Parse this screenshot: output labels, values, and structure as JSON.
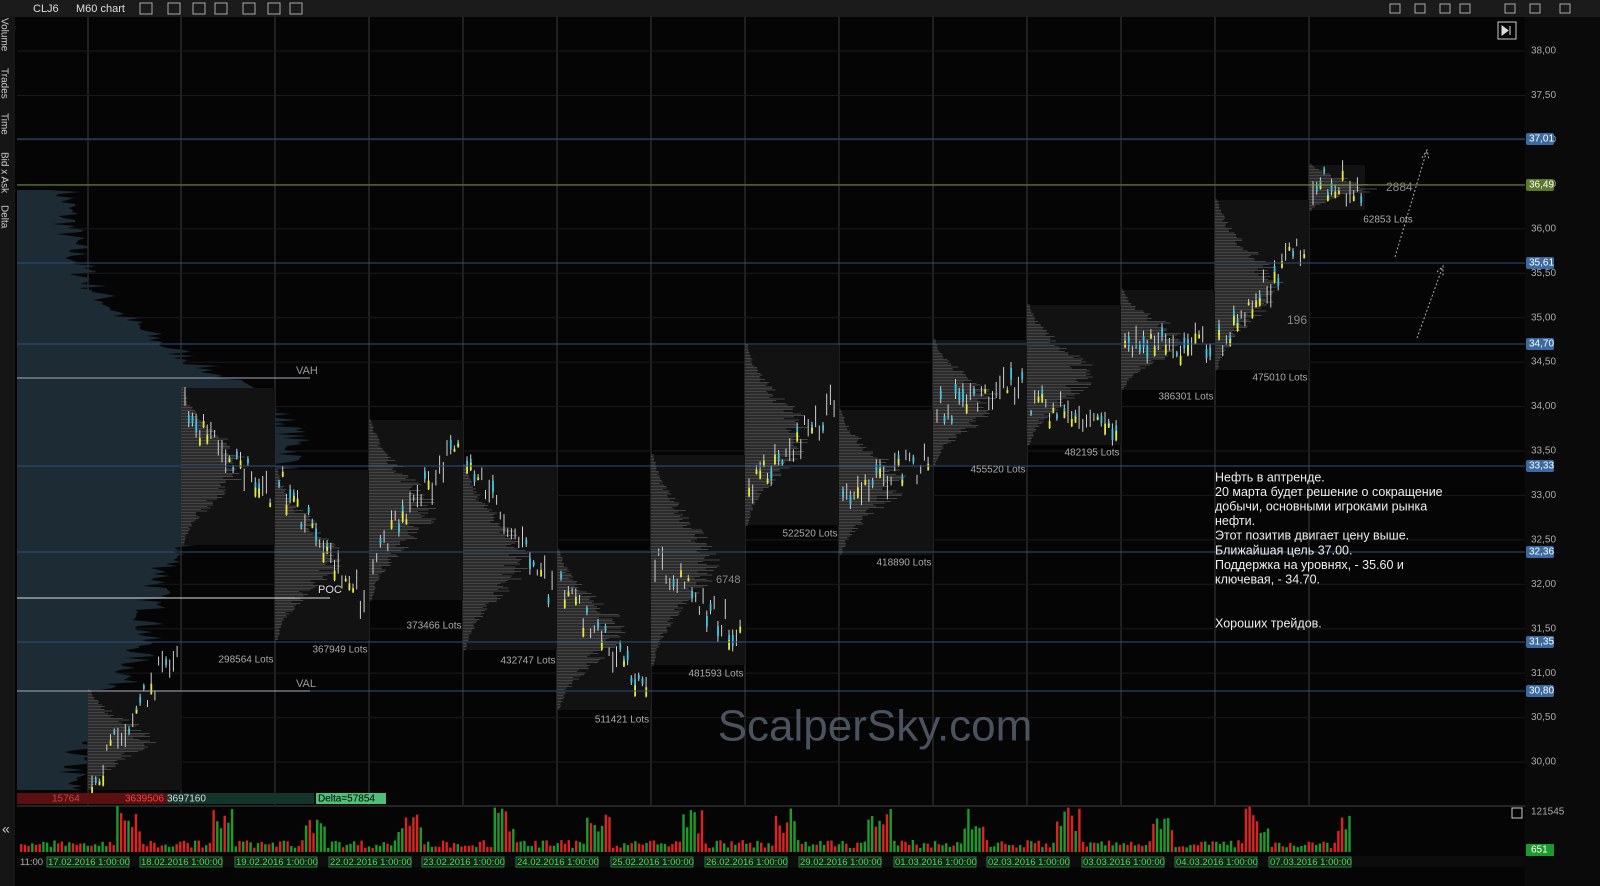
{
  "toolbar": {
    "symbol": "CLJ6",
    "chart": "M60 chart"
  },
  "side_tabs": [
    "Volume",
    "Trades",
    "Time",
    "Bid x Ask",
    "Delta"
  ],
  "price_axis": {
    "labels": [
      "38,00",
      "37,50",
      "37,00",
      "36,50",
      "36,00",
      "35,50",
      "35,00",
      "34,50",
      "34,00",
      "33,50",
      "33,00",
      "32,50",
      "32,00",
      "31,50",
      "31,00",
      "30,50",
      "30,00"
    ],
    "levels": [
      "37,01",
      "36,49",
      "35,61",
      "34,70",
      "33,33",
      "32,36",
      "31,35",
      "30,80"
    ]
  },
  "profile_labels": {
    "vah": "VAH",
    "poc": "POC",
    "val": "VAL"
  },
  "lots": [
    "298564 Lots",
    "367949 Lots",
    "373466 Lots",
    "432747 Lots",
    "511421 Lots",
    "481593 Lots",
    "522520 Lots",
    "418890 Lots",
    "455520 Lots",
    "482195 Lots",
    "386301 Lots",
    "475010 Lots",
    "62853 Lots"
  ],
  "marks": [
    "2884",
    "196",
    "6748"
  ],
  "annotation": [
    "Нефть в аптренде.",
    "20 марта будет решение о сокращение",
    "добычи, основными игроками рынка",
    "нефти.",
    "Этот позитив двигает цену выше.",
    "Ближайшая цель 37.00.",
    "Поддержка на уровнях, - 35.60 и",
    "ключевая, - 34.70.",
    "Хороших трейдов."
  ],
  "watermark": "ScalperSky.com",
  "footer": {
    "values": [
      "15764",
      "3639506",
      "3697160"
    ],
    "delta": "Delta=57854"
  },
  "volume_axis": [
    "121545",
    "651"
  ],
  "dates": [
    "11:00",
    "17.02.2016 1:00:00",
    "18.02.2016 1:00:00",
    "19.02.2016 1:00:00",
    "22.02.2016 1:00:00",
    "23.02.2016 1:00:00",
    "24.02.2016 1:00:00",
    "25.02.2016 1:00:00",
    "26.02.2016 1:00:00",
    "29.02.2016 1:00:00",
    "01.03.2016 1:00:00",
    "02.03.2016 1:00:00",
    "03.03.2016 1:00:00",
    "04.03.2016 1:00:00",
    "07.03.2016 1:00:00"
  ]
}
